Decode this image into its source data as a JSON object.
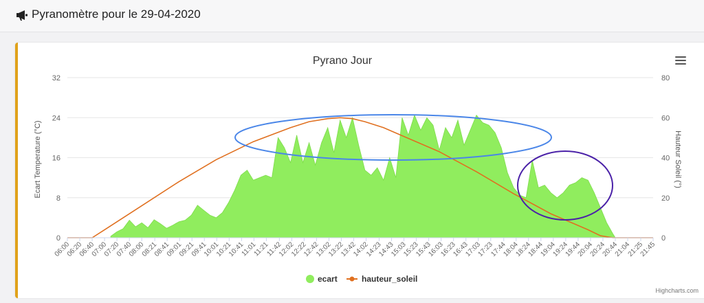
{
  "header": {
    "icon": "megaphone-icon",
    "title": "Pyranomètre pour le 29-04-2020"
  },
  "menu": {
    "icon": "hamburger-menu-icon"
  },
  "credits": "Highcharts.com",
  "chart_data": {
    "type": "area",
    "title": "Pyrano Jour",
    "y_left_label": "Ecart Temperature (°C)",
    "y_right_label": "Hauteur Soleil (°)",
    "y_left_range": [
      0,
      32
    ],
    "y_left_ticks": [
      "0",
      "8",
      "16",
      "24",
      "32"
    ],
    "y_right_range": [
      0,
      80
    ],
    "y_right_ticks": [
      "0",
      "20",
      "40",
      "60",
      "80"
    ],
    "x_ticks": [
      "06:00",
      "06:20",
      "06:40",
      "07:00",
      "07:20",
      "07:40",
      "08:00",
      "08:21",
      "08:41",
      "09:01",
      "09:21",
      "09:41",
      "10:01",
      "10:21",
      "10:41",
      "11:01",
      "11:21",
      "11:42",
      "12:02",
      "12:22",
      "12:42",
      "13:02",
      "13:22",
      "13:42",
      "14:02",
      "14:23",
      "14:43",
      "15:03",
      "15:23",
      "15:43",
      "16:03",
      "16:23",
      "16:43",
      "17:03",
      "17:23",
      "17:44",
      "18:04",
      "18:24",
      "18:44",
      "19:04",
      "19:24",
      "19:44",
      "20:04",
      "20:24",
      "20:44",
      "21:04",
      "21:25",
      "21:45"
    ],
    "grid": "horizontal",
    "legend_position": "bottom-center",
    "colors": {
      "ecart": "#90ed5e",
      "hauteur_soleil": "#e07020",
      "annotation_blue": "#4a86e8",
      "annotation_purple": "#4b22a8"
    },
    "series": [
      {
        "name": "ecart",
        "type": "area",
        "axis": "left",
        "x": [
          "07:10",
          "07:20",
          "07:30",
          "07:40",
          "07:50",
          "08:00",
          "08:10",
          "08:20",
          "08:30",
          "08:40",
          "08:50",
          "09:00",
          "09:10",
          "09:20",
          "09:30",
          "09:40",
          "09:50",
          "10:00",
          "10:10",
          "10:20",
          "10:30",
          "10:40",
          "10:50",
          "11:00",
          "11:10",
          "11:20",
          "11:30",
          "11:40",
          "11:50",
          "12:00",
          "12:10",
          "12:20",
          "12:30",
          "12:40",
          "12:50",
          "13:00",
          "13:10",
          "13:20",
          "13:30",
          "13:40",
          "13:50",
          "14:00",
          "14:10",
          "14:20",
          "14:30",
          "14:40",
          "14:50",
          "15:00",
          "15:10",
          "15:20",
          "15:30",
          "15:40",
          "15:50",
          "16:00",
          "16:10",
          "16:20",
          "16:30",
          "16:40",
          "16:50",
          "17:00",
          "17:10",
          "17:20",
          "17:30",
          "17:40",
          "17:50",
          "18:00",
          "18:10",
          "18:20",
          "18:30",
          "18:40",
          "18:50",
          "19:00",
          "19:10",
          "19:20",
          "19:30",
          "19:40",
          "19:50",
          "20:00",
          "20:10",
          "20:20",
          "20:30",
          "20:40",
          "20:44"
        ],
        "values": [
          0.3,
          1.2,
          1.8,
          3.5,
          2.2,
          3.0,
          2.0,
          3.6,
          2.8,
          1.9,
          2.5,
          3.2,
          3.5,
          4.5,
          6.5,
          5.5,
          4.5,
          4.0,
          5.0,
          7.0,
          9.5,
          12.5,
          13.5,
          11.5,
          12.0,
          12.5,
          12.0,
          20.0,
          18.0,
          15.0,
          20.5,
          15.0,
          19.0,
          14.5,
          19.0,
          22.0,
          17.0,
          23.5,
          20.0,
          24.0,
          18.5,
          13.5,
          12.5,
          14.0,
          11.5,
          16.0,
          12.0,
          24.0,
          20.5,
          24.5,
          21.5,
          24.0,
          22.5,
          17.5,
          22.0,
          20.0,
          23.5,
          18.5,
          21.5,
          24.5,
          23.0,
          22.5,
          21.0,
          18.0,
          13.0,
          10.0,
          8.5,
          8.0,
          15.5,
          10.0,
          10.5,
          9.0,
          8.0,
          9.0,
          10.5,
          11.0,
          12.0,
          11.5,
          9.0,
          6.0,
          3.0,
          0.8,
          0.0
        ]
      },
      {
        "name": "hauteur_soleil",
        "type": "line",
        "axis": "right",
        "x": [
          "06:00",
          "06:30",
          "06:40",
          "07:00",
          "08:00",
          "09:00",
          "10:00",
          "11:00",
          "12:00",
          "12:30",
          "13:00",
          "13:20",
          "13:40",
          "14:00",
          "14:30",
          "15:00",
          "16:00",
          "17:00",
          "18:00",
          "19:00",
          "20:00",
          "20:20",
          "20:40",
          "21:45"
        ],
        "values": [
          0,
          0,
          0,
          4,
          16,
          28,
          39,
          48,
          55,
          58,
          59.5,
          60,
          59.5,
          58,
          55,
          51,
          43,
          33,
          22,
          12,
          4,
          1,
          0,
          0
        ]
      }
    ]
  }
}
